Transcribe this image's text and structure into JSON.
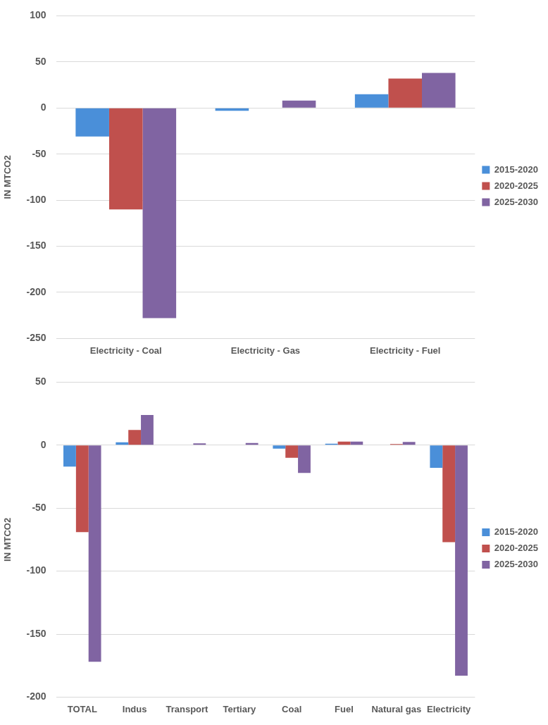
{
  "chart_data": [
    {
      "type": "bar",
      "ylabel": "IN MTCO2",
      "categories": [
        "Electricity - Coal",
        "Electricity - Gas",
        "Electricity - Fuel"
      ],
      "series": [
        {
          "name": "2015-2020",
          "color": "#4a8fd9",
          "values": [
            -31,
            -3,
            15
          ]
        },
        {
          "name": "2020-2025",
          "color": "#c0504d",
          "values": [
            -110,
            null,
            32
          ]
        },
        {
          "name": "2025-2030",
          "color": "#8064a2",
          "values": [
            -228,
            8,
            38
          ]
        }
      ],
      "ylim": [
        -250,
        100
      ],
      "yticks": [
        -250,
        -200,
        -150,
        -100,
        -50,
        0,
        50,
        100
      ],
      "grid": "y",
      "legend": "right"
    },
    {
      "type": "bar",
      "ylabel": "IN MTCO2",
      "categories": [
        "TOTAL",
        "Indus",
        "Transport",
        "Tertiary",
        "Coal",
        "Fuel",
        "Natural gas",
        "Electricity"
      ],
      "series": [
        {
          "name": "2015-2020",
          "color": "#4a8fd9",
          "values": [
            -17,
            2.2,
            null,
            null,
            -2.8,
            1.1,
            null,
            -18
          ]
        },
        {
          "name": "2020-2025",
          "color": "#c0504d",
          "values": [
            -69,
            12,
            null,
            null,
            -10,
            2.8,
            0.8,
            -77
          ]
        },
        {
          "name": "2025-2030",
          "color": "#8064a2",
          "values": [
            -172,
            24,
            1.4,
            1.7,
            -22,
            2.8,
            2.5,
            -183
          ]
        }
      ],
      "ylim": [
        -200,
        50
      ],
      "yticks": [
        -200,
        -150,
        -100,
        -50,
        0,
        50
      ],
      "grid": "y",
      "legend": "right"
    }
  ]
}
